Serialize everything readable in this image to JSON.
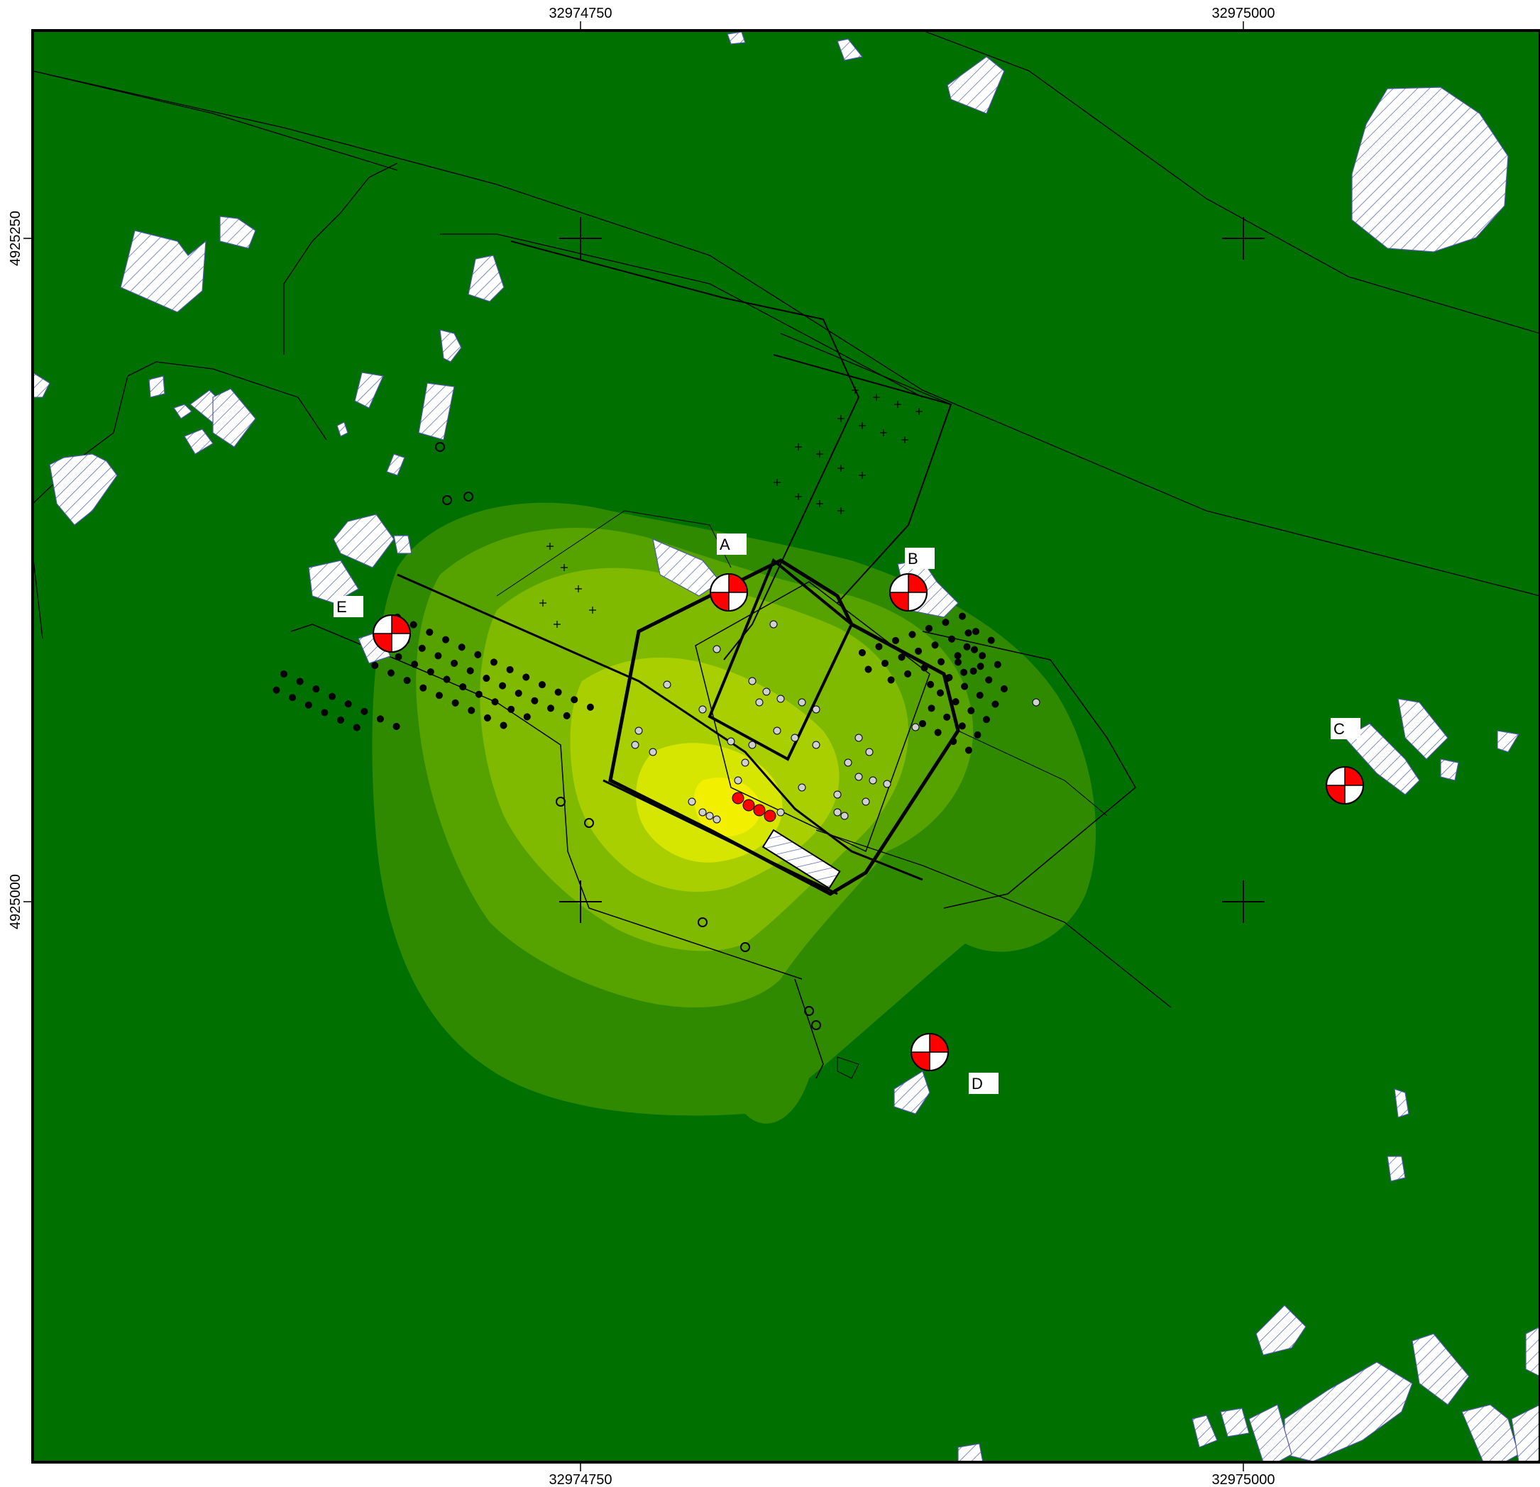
{
  "map": {
    "colors": {
      "background": "#007000",
      "contour_levels": [
        "#2f8a00",
        "#56a300",
        "#7fba00",
        "#a9cf00",
        "#d7e600",
        "#f2f000"
      ],
      "building_hatch": "#4c5aa8",
      "receptor_red": "#ff0000",
      "source_red": "#ff0000",
      "line": "#000000"
    },
    "axes": {
      "x_ticks": [
        "32974750",
        "32975000"
      ],
      "y_ticks": [
        "4925250",
        "4925000"
      ]
    },
    "receptors": [
      {
        "id": "A",
        "label": "A",
        "icon": "receptor-quartered-circle"
      },
      {
        "id": "B",
        "label": "B",
        "icon": "receptor-quartered-circle"
      },
      {
        "id": "C",
        "label": "C",
        "icon": "receptor-quartered-circle"
      },
      {
        "id": "D",
        "label": "D",
        "icon": "receptor-quartered-circle"
      },
      {
        "id": "E",
        "label": "E",
        "icon": "receptor-quartered-circle"
      }
    ]
  }
}
